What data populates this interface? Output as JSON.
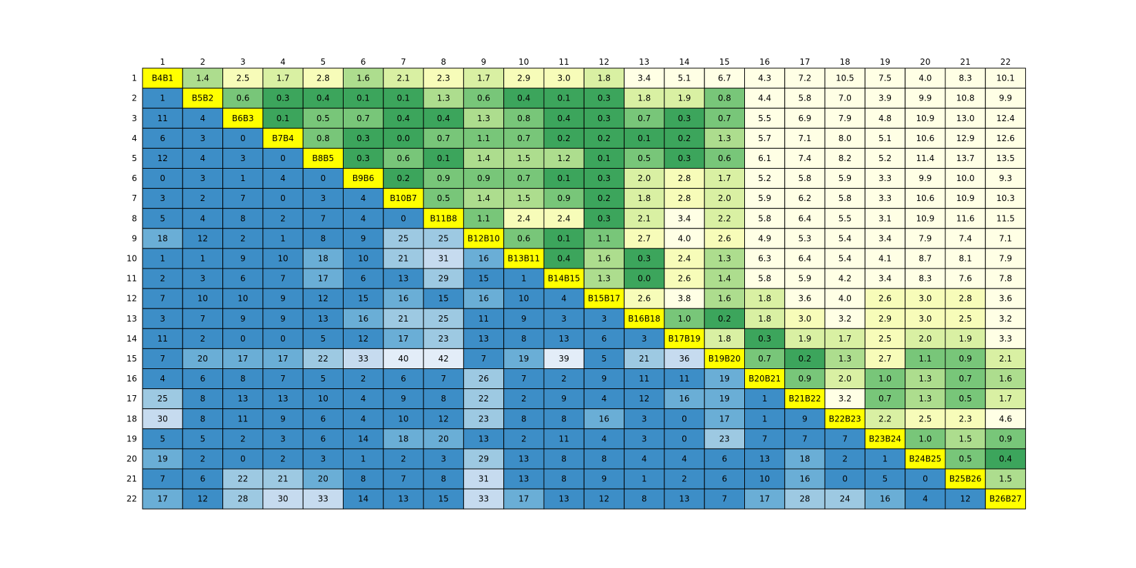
{
  "chart_data": {
    "type": "table",
    "col_labels": [
      "1",
      "2",
      "3",
      "4",
      "5",
      "6",
      "7",
      "8",
      "9",
      "10",
      "11",
      "12",
      "13",
      "14",
      "15",
      "16",
      "17",
      "18",
      "19",
      "20",
      "21",
      "22"
    ],
    "row_labels": [
      "1",
      "2",
      "3",
      "4",
      "5",
      "6",
      "7",
      "8",
      "9",
      "10",
      "11",
      "12",
      "13",
      "14",
      "15",
      "16",
      "17",
      "18",
      "19",
      "20",
      "21",
      "22"
    ],
    "colors": {
      "diagonal": "#ffff00",
      "lower_ramp": [
        "#3d8ec7",
        "#6aaed6",
        "#9dc9e2",
        "#c6dbef",
        "#e3edf8"
      ],
      "upper_ramp": [
        "#3ca55c",
        "#78c679",
        "#addd8e",
        "#d9f0a3",
        "#f7fcb9",
        "#ffffe5"
      ],
      "border": "#000000"
    },
    "rows": [
      [
        "B4B1",
        "1.4",
        "2.5",
        "1.7",
        "2.8",
        "1.6",
        "2.1",
        "2.3",
        "1.7",
        "2.9",
        "3.0",
        "1.8",
        "3.4",
        "5.1",
        "6.7",
        "4.3",
        "7.2",
        "10.5",
        "7.5",
        "4.0",
        "8.3",
        "10.1"
      ],
      [
        "1",
        "B5B2",
        "0.6",
        "0.3",
        "0.4",
        "0.1",
        "0.1",
        "1.3",
        "0.6",
        "0.4",
        "0.1",
        "0.3",
        "1.8",
        "1.9",
        "0.8",
        "4.4",
        "5.8",
        "7.0",
        "3.9",
        "9.9",
        "10.8",
        "9.9"
      ],
      [
        "11",
        "4",
        "B6B3",
        "0.1",
        "0.5",
        "0.7",
        "0.4",
        "0.4",
        "1.3",
        "0.8",
        "0.4",
        "0.3",
        "0.7",
        "0.3",
        "0.7",
        "5.5",
        "6.9",
        "7.9",
        "4.8",
        "10.9",
        "13.0",
        "12.4"
      ],
      [
        "6",
        "3",
        "0",
        "B7B4",
        "0.8",
        "0.3",
        "0.0",
        "0.7",
        "1.1",
        "0.7",
        "0.2",
        "0.2",
        "0.1",
        "0.2",
        "1.3",
        "5.7",
        "7.1",
        "8.0",
        "5.1",
        "10.6",
        "12.9",
        "12.6"
      ],
      [
        "12",
        "4",
        "3",
        "0",
        "B8B5",
        "0.3",
        "0.6",
        "0.1",
        "1.4",
        "1.5",
        "1.2",
        "0.1",
        "0.5",
        "0.3",
        "0.6",
        "6.1",
        "7.4",
        "8.2",
        "5.2",
        "11.4",
        "13.7",
        "13.5"
      ],
      [
        "0",
        "3",
        "1",
        "4",
        "0",
        "B9B6",
        "0.2",
        "0.9",
        "0.9",
        "0.7",
        "0.1",
        "0.3",
        "2.0",
        "2.8",
        "1.7",
        "5.2",
        "5.8",
        "5.9",
        "3.3",
        "9.9",
        "10.0",
        "9.3"
      ],
      [
        "3",
        "2",
        "7",
        "0",
        "3",
        "4",
        "B10B7",
        "0.5",
        "1.4",
        "1.5",
        "0.9",
        "0.2",
        "1.8",
        "2.8",
        "2.0",
        "5.9",
        "6.2",
        "5.8",
        "3.3",
        "10.6",
        "10.9",
        "10.3"
      ],
      [
        "5",
        "4",
        "8",
        "2",
        "7",
        "4",
        "0",
        "B11B8",
        "1.1",
        "2.4",
        "2.4",
        "0.3",
        "2.1",
        "3.4",
        "2.2",
        "5.8",
        "6.4",
        "5.5",
        "3.1",
        "10.9",
        "11.6",
        "11.5"
      ],
      [
        "18",
        "12",
        "2",
        "1",
        "8",
        "9",
        "25",
        "25",
        "B12B10",
        "0.6",
        "0.1",
        "1.1",
        "2.7",
        "4.0",
        "2.6",
        "4.9",
        "5.3",
        "5.4",
        "3.4",
        "7.9",
        "7.4",
        "7.1"
      ],
      [
        "1",
        "1",
        "9",
        "10",
        "18",
        "10",
        "21",
        "31",
        "16",
        "B13B11",
        "0.4",
        "1.6",
        "0.3",
        "2.4",
        "1.3",
        "6.3",
        "6.4",
        "5.4",
        "4.1",
        "8.7",
        "8.1",
        "7.9"
      ],
      [
        "2",
        "3",
        "6",
        "7",
        "17",
        "6",
        "13",
        "29",
        "15",
        "1",
        "B14B15",
        "1.3",
        "0.0",
        "2.6",
        "1.4",
        "5.8",
        "5.9",
        "4.2",
        "3.4",
        "8.3",
        "7.6",
        "7.8"
      ],
      [
        "7",
        "10",
        "10",
        "9",
        "12",
        "15",
        "16",
        "15",
        "16",
        "10",
        "4",
        "B15B17",
        "2.6",
        "3.8",
        "1.6",
        "1.8",
        "3.6",
        "4.0",
        "2.6",
        "3.0",
        "2.8",
        "3.6"
      ],
      [
        "3",
        "7",
        "9",
        "9",
        "13",
        "16",
        "21",
        "25",
        "11",
        "9",
        "3",
        "3",
        "B16B18",
        "1.0",
        "0.2",
        "1.8",
        "3.0",
        "3.2",
        "2.9",
        "3.0",
        "2.5",
        "3.2"
      ],
      [
        "11",
        "2",
        "0",
        "0",
        "5",
        "12",
        "17",
        "23",
        "13",
        "8",
        "13",
        "6",
        "3",
        "B17B19",
        "1.8",
        "0.3",
        "1.9",
        "1.7",
        "2.5",
        "2.0",
        "1.9",
        "3.3"
      ],
      [
        "7",
        "20",
        "17",
        "17",
        "22",
        "33",
        "40",
        "42",
        "7",
        "19",
        "39",
        "5",
        "21",
        "36",
        "B19B20",
        "0.7",
        "0.2",
        "1.3",
        "2.7",
        "1.1",
        "0.9",
        "2.1"
      ],
      [
        "4",
        "6",
        "8",
        "7",
        "5",
        "2",
        "6",
        "7",
        "26",
        "7",
        "2",
        "9",
        "11",
        "11",
        "19",
        "B20B21",
        "0.9",
        "2.0",
        "1.0",
        "1.3",
        "0.7",
        "1.6"
      ],
      [
        "25",
        "8",
        "13",
        "13",
        "10",
        "4",
        "9",
        "8",
        "22",
        "2",
        "9",
        "4",
        "12",
        "16",
        "19",
        "1",
        "B21B22",
        "3.2",
        "0.7",
        "1.3",
        "0.5",
        "1.7"
      ],
      [
        "30",
        "8",
        "11",
        "9",
        "6",
        "4",
        "10",
        "12",
        "23",
        "8",
        "8",
        "16",
        "3",
        "0",
        "17",
        "1",
        "9",
        "B22B23",
        "2.2",
        "2.5",
        "2.3",
        "4.6"
      ],
      [
        "5",
        "5",
        "2",
        "3",
        "6",
        "14",
        "18",
        "20",
        "13",
        "2",
        "11",
        "4",
        "3",
        "0",
        "23",
        "7",
        "7",
        "7",
        "B23B24",
        "1.0",
        "1.5",
        "0.9"
      ],
      [
        "19",
        "2",
        "0",
        "2",
        "3",
        "1",
        "2",
        "3",
        "29",
        "13",
        "8",
        "8",
        "4",
        "4",
        "6",
        "13",
        "18",
        "2",
        "1",
        "B24B25",
        "0.5",
        "0.4"
      ],
      [
        "7",
        "6",
        "22",
        "21",
        "20",
        "8",
        "7",
        "8",
        "31",
        "13",
        "8",
        "9",
        "1",
        "2",
        "6",
        "10",
        "16",
        "0",
        "5",
        "0",
        "B25B26",
        "1.5"
      ],
      [
        "17",
        "12",
        "28",
        "30",
        "33",
        "14",
        "13",
        "15",
        "33",
        "17",
        "13",
        "12",
        "8",
        "13",
        "7",
        "17",
        "28",
        "24",
        "16",
        "4",
        "12",
        "B26B27"
      ]
    ]
  }
}
